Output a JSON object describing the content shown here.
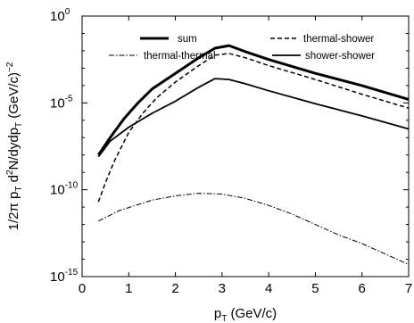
{
  "chart_data": {
    "type": "line",
    "xlabel": {
      "main": "p",
      "sub": "T",
      "unit": " (GeV/c)"
    },
    "ylabel": {
      "prefix": "1/2π p",
      "sub1": "T",
      "mid": " d",
      "sup1": "2",
      "mid2": "N/dydp",
      "sub2": "T",
      "unit": " (GeV/c)",
      "sup2": "−2"
    },
    "xlim": [
      0,
      7
    ],
    "ylim_log10": [
      -15,
      0
    ],
    "yscale": "log",
    "grid": false,
    "legend_position": "top",
    "x_ticks": [
      0,
      1,
      2,
      3,
      4,
      5,
      6,
      7
    ],
    "y_ticks": [
      {
        "exp": 0,
        "base": "10",
        "power": "0"
      },
      {
        "exp": -5,
        "base": "10",
        "power": "-5"
      },
      {
        "exp": -10,
        "base": "10",
        "power": "-10"
      },
      {
        "exp": -15,
        "base": "10",
        "power": "-15"
      }
    ],
    "series": [
      {
        "name": "sum",
        "style": "solid-thick",
        "color": "#000000",
        "points": [
          [
            0.35,
            -8.0
          ],
          [
            0.6,
            -7.0
          ],
          [
            0.9,
            -5.9
          ],
          [
            1.2,
            -5.0
          ],
          [
            1.5,
            -4.2
          ],
          [
            2.0,
            -3.3
          ],
          [
            2.5,
            -2.4
          ],
          [
            2.85,
            -1.85
          ],
          [
            3.15,
            -1.7
          ],
          [
            3.5,
            -2.05
          ],
          [
            4.0,
            -2.5
          ],
          [
            5.0,
            -3.3
          ],
          [
            6.0,
            -4.0
          ],
          [
            7.0,
            -4.8
          ]
        ]
      },
      {
        "name": "thermal-shower",
        "style": "dashed",
        "color": "#000000",
        "points": [
          [
            0.35,
            -10.7
          ],
          [
            0.5,
            -9.6
          ],
          [
            0.7,
            -8.3
          ],
          [
            1.0,
            -6.7
          ],
          [
            1.3,
            -5.6
          ],
          [
            1.6,
            -4.7
          ],
          [
            2.0,
            -3.8
          ],
          [
            2.5,
            -2.85
          ],
          [
            2.85,
            -2.25
          ],
          [
            3.15,
            -2.15
          ],
          [
            3.5,
            -2.4
          ],
          [
            4.0,
            -2.85
          ],
          [
            5.0,
            -3.65
          ],
          [
            6.0,
            -4.5
          ],
          [
            7.0,
            -5.3
          ]
        ]
      },
      {
        "name": "thermal-thermal",
        "style": "dash-dot",
        "color": "#000000",
        "points": [
          [
            0.35,
            -11.8
          ],
          [
            0.8,
            -11.2
          ],
          [
            1.5,
            -10.6
          ],
          [
            2.0,
            -10.35
          ],
          [
            2.5,
            -10.2
          ],
          [
            3.0,
            -10.25
          ],
          [
            3.5,
            -10.5
          ],
          [
            4.0,
            -10.9
          ],
          [
            4.5,
            -11.4
          ],
          [
            5.0,
            -12.0
          ],
          [
            5.5,
            -12.6
          ],
          [
            6.0,
            -13.1
          ],
          [
            6.5,
            -13.7
          ],
          [
            7.0,
            -14.3
          ]
        ]
      },
      {
        "name": "shower-shower",
        "style": "solid",
        "color": "#000000",
        "points": [
          [
            0.35,
            -8.1
          ],
          [
            0.6,
            -7.2
          ],
          [
            1.0,
            -6.4
          ],
          [
            1.5,
            -5.6
          ],
          [
            2.0,
            -4.9
          ],
          [
            2.5,
            -4.1
          ],
          [
            2.85,
            -3.6
          ],
          [
            3.15,
            -3.65
          ],
          [
            3.5,
            -3.9
          ],
          [
            4.0,
            -4.3
          ],
          [
            5.0,
            -5.05
          ],
          [
            6.0,
            -5.75
          ],
          [
            7.0,
            -6.5
          ]
        ]
      }
    ]
  }
}
